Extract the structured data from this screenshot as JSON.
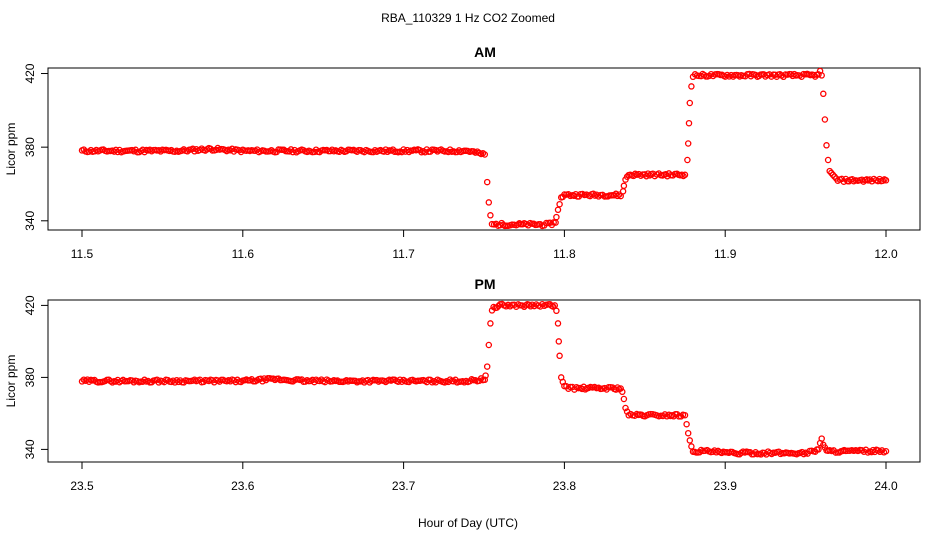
{
  "figure": {
    "title": "RBA_110329  1 Hz CO2 Zoomed",
    "xlabel": "Hour of Day (UTC)"
  },
  "chart_data": [
    {
      "type": "scatter",
      "title": "AM",
      "ylabel": "Licor ppm",
      "xlim": [
        11.5,
        12.0
      ],
      "ylim": [
        335,
        423
      ],
      "xticks": [
        11.5,
        11.6,
        11.7,
        11.8,
        11.9,
        12.0
      ],
      "xtick_labels": [
        "11.5",
        "11.6",
        "11.7",
        "11.8",
        "11.9",
        "12.0"
      ],
      "yticks": [
        340,
        380,
        420
      ],
      "ytick_labels": [
        "340",
        "380",
        "420"
      ],
      "marker": "open-circle",
      "color": "#ff0000",
      "series": [
        {
          "x": [
            11.5,
            11.52,
            11.54,
            11.56,
            11.58,
            11.6,
            11.62,
            11.64,
            11.66,
            11.68,
            11.7,
            11.72,
            11.74,
            11.7505,
            11.752,
            11.753,
            11.754,
            11.755,
            11.76,
            11.765,
            11.77,
            11.775,
            11.78,
            11.785,
            11.79,
            11.7945,
            11.795,
            11.796,
            11.797,
            11.798,
            11.8,
            11.805,
            11.81,
            11.815,
            11.82,
            11.825,
            11.83,
            11.835,
            11.8365,
            11.837,
            11.838,
            11.839,
            11.84,
            11.845,
            11.85,
            11.855,
            11.86,
            11.865,
            11.87,
            11.875,
            11.8765,
            11.877,
            11.8775,
            11.878,
            11.879,
            11.88,
            11.885,
            11.89,
            11.895,
            11.9,
            11.905,
            11.91,
            11.915,
            11.92,
            11.925,
            11.93,
            11.935,
            11.94,
            11.945,
            11.95,
            11.955,
            11.958,
            11.959,
            11.96,
            11.961,
            11.962,
            11.963,
            11.964,
            11.965,
            11.97,
            11.975,
            11.98,
            11.985,
            11.99,
            11.995,
            12.0
          ],
          "y": [
            378,
            378,
            378,
            378,
            379,
            378,
            378,
            378,
            378,
            378,
            378,
            378,
            378,
            376,
            361,
            350,
            343,
            338,
            338,
            338,
            338,
            338,
            338,
            338,
            338,
            339,
            342,
            346,
            349,
            353,
            354,
            354,
            354,
            354,
            354,
            354,
            354,
            354,
            356,
            359,
            362,
            364,
            365,
            365,
            365,
            365,
            365,
            365,
            365,
            365,
            373,
            382,
            393,
            404,
            413,
            419,
            419,
            419,
            419,
            419,
            419,
            419,
            419,
            419,
            419,
            419,
            419,
            419,
            419,
            419,
            419,
            419,
            421,
            419,
            409,
            395,
            381,
            373,
            367,
            362,
            362,
            362,
            362,
            362,
            362,
            362
          ]
        }
      ]
    },
    {
      "type": "scatter",
      "title": "PM",
      "ylabel": "Licor ppm",
      "xlim": [
        23.5,
        24.0
      ],
      "ylim": [
        333,
        423
      ],
      "xticks": [
        23.5,
        23.6,
        23.7,
        23.8,
        23.9,
        24.0
      ],
      "xtick_labels": [
        "23.5",
        "23.6",
        "23.7",
        "23.8",
        "23.9",
        "24.0"
      ],
      "yticks": [
        340,
        380,
        420
      ],
      "ytick_labels": [
        "340",
        "380",
        "420"
      ],
      "marker": "open-circle",
      "color": "#ff0000",
      "series": [
        {
          "x": [
            23.5,
            23.52,
            23.54,
            23.56,
            23.58,
            23.6,
            23.62,
            23.64,
            23.66,
            23.68,
            23.7,
            23.72,
            23.74,
            23.7505,
            23.751,
            23.752,
            23.753,
            23.754,
            23.755,
            23.76,
            23.765,
            23.77,
            23.775,
            23.78,
            23.785,
            23.79,
            23.794,
            23.795,
            23.796,
            23.7965,
            23.797,
            23.798,
            23.8,
            23.805,
            23.81,
            23.815,
            23.82,
            23.825,
            23.83,
            23.835,
            23.836,
            23.837,
            23.838,
            23.84,
            23.845,
            23.85,
            23.855,
            23.86,
            23.865,
            23.87,
            23.875,
            23.876,
            23.877,
            23.878,
            23.879,
            23.88,
            23.885,
            23.89,
            23.9,
            23.91,
            23.92,
            23.93,
            23.94,
            23.95,
            23.955,
            23.958,
            23.959,
            23.96,
            23.961,
            23.962,
            23.963,
            23.965,
            23.97,
            23.975,
            23.98,
            23.985,
            23.99,
            23.995,
            24.0
          ],
          "y": [
            378,
            378,
            378,
            378,
            378,
            378,
            379,
            378,
            378,
            378,
            378,
            378,
            378,
            379,
            381,
            386,
            398,
            410,
            418,
            420,
            420,
            420,
            420,
            420,
            420,
            420,
            420,
            417,
            410,
            400,
            392,
            380,
            375,
            374,
            374,
            374,
            374,
            374,
            374,
            374,
            372,
            368,
            363,
            359,
            359,
            359,
            359,
            359,
            359,
            359,
            359,
            354,
            349,
            345,
            341,
            339,
            339,
            339,
            338,
            338,
            338,
            338,
            338,
            338,
            339,
            340,
            344,
            346,
            343,
            341,
            339,
            339,
            339,
            339,
            339,
            339,
            339,
            339,
            339
          ]
        }
      ]
    }
  ]
}
